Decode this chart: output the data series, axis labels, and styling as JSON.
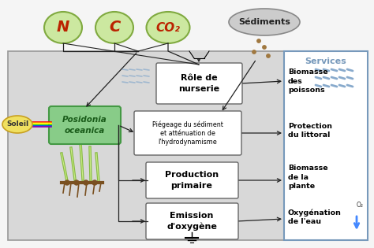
{
  "bg_color": "#d8d8d8",
  "services_bg": "#ffffff",
  "services_border": "#7799bb",
  "services_title": "Services",
  "services_title_color": "#7799bb",
  "n_label": "N",
  "c_label": "C",
  "co2_label": "CO₂",
  "sediments_label": "Sédiments",
  "soleil_label": "Soleil",
  "posidonia_label": "Posidonia\noceanica",
  "box1_label": "Rôle de\nnurserie",
  "box2_label": "Piégeage du sédiment\net atténuation de\nl'hydrodynamisme",
  "box3_label": "Production\nprimaire",
  "box4_label": "Emission\nd'oxygène",
  "service1": "Biomasse\ndes\npoissons",
  "service2": "Protection\ndu littoral",
  "service3": "Biomasse\nde la\nplante",
  "service4": "Oxygénation\nde l'eau",
  "ellipse_green_color": "#cce8a0",
  "ellipse_green_border": "#80aa40",
  "ellipse_gray_color": "#cccccc",
  "ellipse_gray_border": "#888888",
  "ellipse_yellow_color": "#f0e060",
  "ellipse_yellow_border": "#c8a020",
  "posidonia_bg": "#88cc88",
  "posidonia_border": "#449944",
  "box_bg": "#ffffff",
  "box_border": "#666666",
  "arrow_color": "#222222",
  "fish_color": "#88aacc",
  "o2_arrow_color": "#4488ff"
}
